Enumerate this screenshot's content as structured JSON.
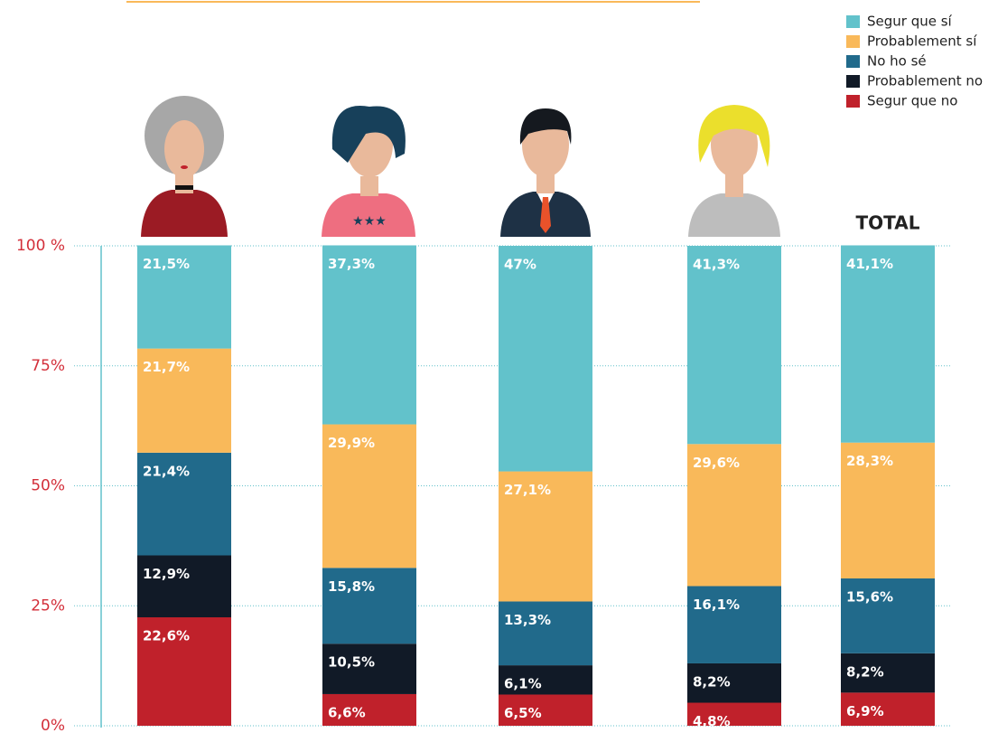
{
  "chart_data": {
    "type": "stacked_bar",
    "categories": [
      null,
      null,
      null,
      null,
      "TOTAL"
    ],
    "series": [
      {
        "name": "Segur que sí",
        "color": "#62c2cb",
        "values": [
          21.5,
          37.3,
          47,
          41.3,
          41.1
        ],
        "value_labels": [
          "21,5%",
          "37,3%",
          "47%",
          "41,3%",
          "41,1%"
        ]
      },
      {
        "name": "Probablement sí",
        "color": "#f9b95a",
        "values": [
          21.7,
          29.9,
          27.1,
          29.6,
          28.3
        ],
        "value_labels": [
          "21,7%",
          "29,9%",
          "27,1%",
          "29,6%",
          "28,3%"
        ]
      },
      {
        "name": "No ho sé",
        "color": "#216a8b",
        "values": [
          21.4,
          15.8,
          13.3,
          16.1,
          15.6
        ],
        "value_labels": [
          "21,4%",
          "15,8%",
          "13,3%",
          "16,1%",
          "15,6%"
        ]
      },
      {
        "name": "Probablement no",
        "color": "#111a27",
        "values": [
          12.9,
          10.5,
          6.1,
          8.2,
          8.2
        ],
        "value_labels": [
          "12,9%",
          "10,5%",
          "6,1%",
          "8,2%",
          "8,2%"
        ]
      },
      {
        "name": "Segur que no",
        "color": "#c0212b",
        "values": [
          22.6,
          6.6,
          6.5,
          4.8,
          6.9
        ],
        "value_labels": [
          "22,6%",
          "6,6%",
          "6,5%",
          "4,8%",
          "6,9%"
        ]
      }
    ],
    "ylim": [
      0,
      100
    ],
    "yticks": [
      {
        "value": 0,
        "label": "0%"
      },
      {
        "value": 25,
        "label": "25%"
      },
      {
        "value": 50,
        "label": "50%"
      },
      {
        "value": 75,
        "label": "75%"
      },
      {
        "value": 100,
        "label": "100 %"
      }
    ],
    "grid": true
  }
}
